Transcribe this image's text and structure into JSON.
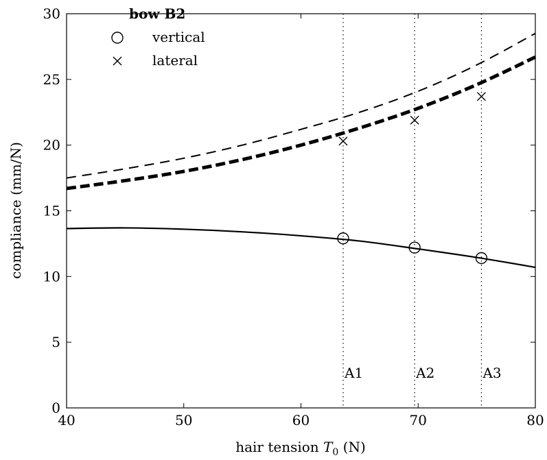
{
  "chart_data": {
    "type": "line",
    "xlabel_prefix": "hair tension ",
    "xlabel_symbol": "T",
    "xlabel_subscript": "0",
    "xlabel_suffix": " (N)",
    "ylabel": "compliance (mm/N)",
    "xlim": [
      40,
      80
    ],
    "ylim": [
      0,
      30
    ],
    "xticks": [
      40,
      50,
      60,
      70,
      80
    ],
    "yticks": [
      0,
      5,
      10,
      15,
      20,
      25,
      30
    ],
    "grid": false,
    "legend": {
      "title": "bow B2",
      "placement": "top-left",
      "entries": [
        {
          "label": "vertical",
          "marker": "circle"
        },
        {
          "label": "lateral",
          "marker": "cross"
        }
      ]
    },
    "series": [
      {
        "style": "solid",
        "color": "#000000",
        "x": [
          40,
          45,
          50,
          55,
          60,
          65,
          70,
          75,
          80
        ],
        "y": [
          13.65,
          13.7,
          13.6,
          13.4,
          13.1,
          12.7,
          12.1,
          11.45,
          10.7
        ]
      },
      {
        "style": "dashed-thin",
        "color": "#000000",
        "x": [
          40,
          45,
          50,
          55,
          60,
          65,
          70,
          75,
          80
        ],
        "y": [
          17.5,
          18.2,
          19.0,
          20.0,
          21.2,
          22.5,
          24.1,
          26.1,
          28.5
        ]
      },
      {
        "style": "dashed-thick",
        "color": "#000000",
        "x": [
          40,
          45,
          50,
          55,
          60,
          65,
          70,
          75,
          80
        ],
        "y": [
          16.7,
          17.3,
          18.0,
          18.9,
          20.0,
          21.3,
          22.8,
          24.6,
          26.7
        ]
      }
    ],
    "points": [
      {
        "marker": "circle",
        "x": [
          63.6,
          69.7,
          75.4
        ],
        "y": [
          12.9,
          12.2,
          11.4
        ]
      },
      {
        "marker": "cross",
        "x": [
          63.6,
          69.7,
          75.4
        ],
        "y": [
          20.3,
          21.9,
          23.7
        ]
      }
    ],
    "annotations": [
      {
        "label": "A1",
        "x": 63.6
      },
      {
        "label": "A2",
        "x": 69.7
      },
      {
        "label": "A3",
        "x": 75.4
      }
    ]
  }
}
